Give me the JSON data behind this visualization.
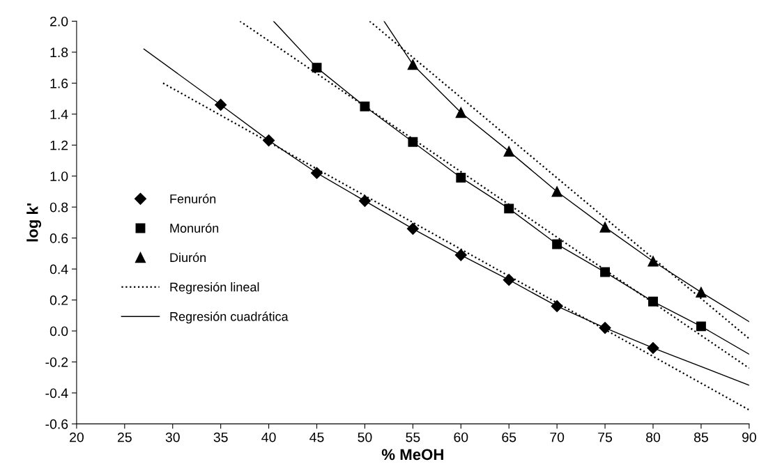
{
  "chart_data": {
    "type": "scatter",
    "xlabel": "% MeOH",
    "ylabel": "log k'",
    "xlim": [
      20,
      90
    ],
    "xticks": [
      20,
      25,
      30,
      35,
      40,
      45,
      50,
      55,
      60,
      65,
      70,
      75,
      80,
      85,
      90
    ],
    "ylim": [
      -0.6,
      2.0
    ],
    "yticks": [
      {
        "value": -0.6,
        "label": "-0.6"
      },
      {
        "value": -0.4,
        "label": "-0.4"
      },
      {
        "value": -0.2,
        "label": "-0.2"
      },
      {
        "value": 0,
        "label": "0.0"
      },
      {
        "value": 0.2,
        "label": "0.2"
      },
      {
        "value": 0.4,
        "label": "0.4"
      },
      {
        "value": 0.6,
        "label": "0.6"
      },
      {
        "value": 0.8,
        "label": "0.8"
      },
      {
        "value": 1.0,
        "label": "1.0"
      },
      {
        "value": 1.2,
        "label": "1.2"
      },
      {
        "value": 1.4,
        "label": "1.4"
      },
      {
        "value": 1.6,
        "label": "1.6"
      },
      {
        "value": 1.8,
        "label": "1.8"
      },
      {
        "value": 2.0,
        "label": "2.0"
      }
    ],
    "grid": false,
    "legend": "left",
    "series": [
      {
        "name": "Fenurón",
        "marker": "diamond",
        "color": "#000000",
        "x": [
          35,
          40,
          45,
          50,
          55,
          60,
          65,
          70,
          75,
          80
        ],
        "values": [
          1.46,
          1.23,
          1.02,
          0.84,
          0.66,
          0.49,
          0.33,
          0.16,
          0.02,
          -0.11
        ]
      },
      {
        "name": "Monurón",
        "marker": "square",
        "color": "#000000",
        "x": [
          45,
          50,
          55,
          60,
          65,
          70,
          75,
          80,
          85
        ],
        "values": [
          1.7,
          1.45,
          1.22,
          0.99,
          0.79,
          0.56,
          0.38,
          0.19,
          0.03
        ]
      },
      {
        "name": "Diurón",
        "marker": "triangle",
        "color": "#000000",
        "x": [
          55,
          60,
          65,
          70,
          75,
          80,
          85
        ],
        "values": [
          1.72,
          1.41,
          1.16,
          0.9,
          0.67,
          0.45,
          0.25
        ]
      },
      {
        "name": "Regresión lineal",
        "type": "line",
        "line_style": "dotted",
        "color": "#000000",
        "x": [
          29,
          90
        ],
        "values": [
          1.6,
          -0.51
        ]
      },
      {
        "name": "Regresión cuadrática",
        "type": "line",
        "line_style": "solid",
        "color": "#000000",
        "x": [
          27,
          35,
          40,
          45,
          50,
          55,
          60,
          65,
          70,
          75,
          80,
          90
        ],
        "values": [
          1.82,
          1.46,
          1.23,
          1.02,
          0.84,
          0.66,
          0.49,
          0.33,
          0.16,
          0.02,
          -0.11,
          -0.35
        ]
      },
      {
        "type": "line",
        "line_style": "dotted",
        "color": "#000000",
        "x": [
          37,
          90
        ],
        "values": [
          2.0,
          -0.24
        ]
      },
      {
        "type": "line",
        "line_style": "solid",
        "color": "#000000",
        "x": [
          40.5,
          45,
          50,
          55,
          60,
          65,
          70,
          75,
          80,
          85,
          90
        ],
        "values": [
          2.0,
          1.7,
          1.45,
          1.22,
          0.99,
          0.79,
          0.56,
          0.38,
          0.19,
          0.03,
          -0.15
        ]
      },
      {
        "type": "line",
        "line_style": "dotted",
        "color": "#000000",
        "x": [
          50.5,
          90
        ],
        "values": [
          2.0,
          -0.05
        ]
      },
      {
        "type": "line",
        "line_style": "solid",
        "color": "#000000",
        "x": [
          52,
          55,
          60,
          65,
          70,
          75,
          80,
          85,
          90
        ],
        "values": [
          2.0,
          1.72,
          1.41,
          1.16,
          0.9,
          0.67,
          0.45,
          0.25,
          0.06
        ]
      }
    ]
  }
}
